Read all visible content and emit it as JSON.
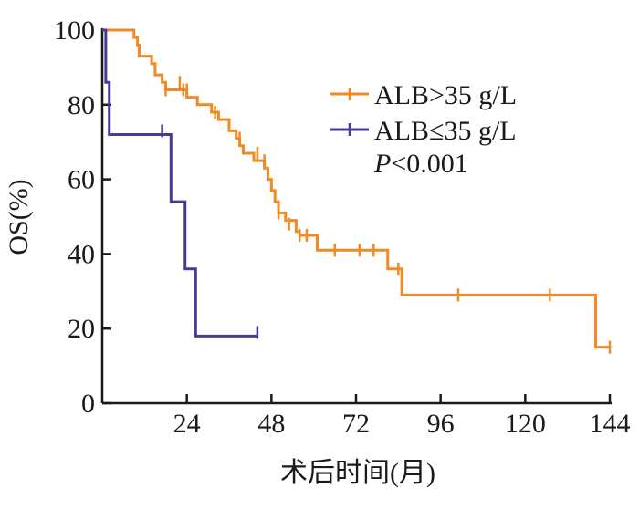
{
  "chart_data": {
    "type": "line",
    "subtype": "kaplan-meier-step",
    "xlabel": "术后时间(月)",
    "ylabel": "OS(%)",
    "xlim": [
      0,
      144
    ],
    "ylim": [
      0,
      100
    ],
    "x_ticks": [
      24,
      48,
      72,
      96,
      120,
      144
    ],
    "y_ticks": [
      0,
      20,
      40,
      60,
      80,
      100
    ],
    "grid": false,
    "legend_position": "top-right",
    "annotation": {
      "prefix": "P",
      "text": "<0.001"
    },
    "series": [
      {
        "name": "ALB>35 g/L",
        "color": "#f08a24",
        "steps": [
          [
            0,
            100
          ],
          [
            9,
            98
          ],
          [
            10,
            96
          ],
          [
            10.5,
            93
          ],
          [
            14,
            91
          ],
          [
            15,
            88
          ],
          [
            17,
            86
          ],
          [
            18,
            84
          ],
          [
            24,
            82
          ],
          [
            27,
            80
          ],
          [
            31,
            78
          ],
          [
            33,
            76
          ],
          [
            36,
            73
          ],
          [
            38,
            71
          ],
          [
            39,
            69
          ],
          [
            40,
            67
          ],
          [
            43,
            65
          ],
          [
            46,
            63
          ],
          [
            47,
            60
          ],
          [
            48,
            57
          ],
          [
            49,
            54
          ],
          [
            50,
            51
          ],
          [
            52,
            49
          ],
          [
            55,
            46
          ],
          [
            56,
            45
          ],
          [
            61,
            41
          ],
          [
            81,
            36
          ],
          [
            85,
            29
          ],
          [
            140,
            15
          ],
          [
            144,
            15
          ]
        ],
        "censored": [
          [
            18,
            84
          ],
          [
            22,
            86
          ],
          [
            23,
            84
          ],
          [
            24,
            84
          ],
          [
            32,
            78
          ],
          [
            39,
            71
          ],
          [
            44,
            67
          ],
          [
            46,
            65
          ],
          [
            50,
            51
          ],
          [
            53,
            48
          ],
          [
            56,
            45
          ],
          [
            58,
            45
          ],
          [
            66,
            41
          ],
          [
            73,
            41
          ],
          [
            77,
            41
          ],
          [
            84,
            36
          ],
          [
            101,
            29
          ],
          [
            127,
            29
          ],
          [
            144,
            15
          ]
        ]
      },
      {
        "name": "ALB≤35 g/L",
        "color": "#4a3a96",
        "steps": [
          [
            0,
            100
          ],
          [
            1,
            86
          ],
          [
            2,
            72
          ],
          [
            19,
            72
          ],
          [
            19.5,
            54
          ],
          [
            23,
            54
          ],
          [
            23.5,
            36
          ],
          [
            26,
            36
          ],
          [
            26.5,
            18
          ],
          [
            44,
            18
          ]
        ],
        "censored": [
          [
            17,
            73
          ],
          [
            44,
            19
          ]
        ]
      }
    ]
  }
}
